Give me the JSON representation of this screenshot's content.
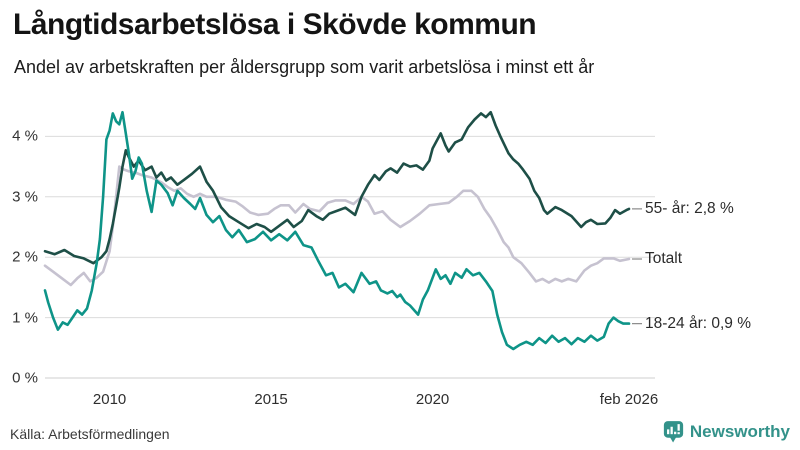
{
  "header": {
    "title": "Långtidsarbetslösa i Skövde kommun",
    "subtitle": "Andel av arbetskraften per åldersgrupp som varit arbetslösa i minst ett år"
  },
  "footer": {
    "source": "Källa: Arbetsförmedlingen",
    "brand": "Newsworthy"
  },
  "colors": {
    "brand_teal": "#33928A",
    "grid": "#dcdcdc",
    "zero_line": "#cfcfcf",
    "dash_connector": "#8a8a8a",
    "series_55": "#1E4F47",
    "series_total": "#C6C2D0",
    "series_18_24": "#0E9488"
  },
  "chart_data": {
    "type": "line",
    "title": "Långtidsarbetslösa i Skövde kommun",
    "subtitle": "Andel av arbetskraften per åldersgrupp som varit arbetslösa i minst ett år",
    "x_unit": "decimal_year",
    "xlim": [
      2008.0,
      2026.17
    ],
    "ylim": [
      0,
      4.6
    ],
    "grid": "horizontal",
    "legend_position": "right-end-labels",
    "yticks": [
      {
        "v": 0,
        "label": "0 %"
      },
      {
        "v": 1,
        "label": "1 %"
      },
      {
        "v": 2,
        "label": "2 %"
      },
      {
        "v": 3,
        "label": "3 %"
      },
      {
        "v": 4,
        "label": "4 %"
      }
    ],
    "xticks": [
      {
        "v": 2010,
        "label": "2010"
      },
      {
        "v": 2015,
        "label": "2015"
      },
      {
        "v": 2020,
        "label": "2020"
      },
      {
        "v": 2026.08,
        "label": "feb 2026"
      }
    ],
    "series": [
      {
        "name": "Totalt",
        "end_label": "Totalt",
        "end_value": 2.0,
        "color": "#C6C2D0",
        "points": [
          [
            2008.0,
            1.86
          ],
          [
            2008.25,
            1.76
          ],
          [
            2008.5,
            1.66
          ],
          [
            2008.8,
            1.54
          ],
          [
            2009.0,
            1.65
          ],
          [
            2009.2,
            1.74
          ],
          [
            2009.4,
            1.6
          ],
          [
            2009.6,
            1.66
          ],
          [
            2009.8,
            1.76
          ],
          [
            2010.0,
            2.1
          ],
          [
            2010.1,
            2.5
          ],
          [
            2010.2,
            3.0
          ],
          [
            2010.3,
            3.5
          ],
          [
            2010.45,
            3.45
          ],
          [
            2010.6,
            3.42
          ],
          [
            2010.8,
            3.4
          ],
          [
            2011.0,
            3.36
          ],
          [
            2011.3,
            3.32
          ],
          [
            2011.6,
            3.24
          ],
          [
            2011.8,
            3.16
          ],
          [
            2012.0,
            3.1
          ],
          [
            2012.2,
            3.14
          ],
          [
            2012.4,
            3.05
          ],
          [
            2012.6,
            3.0
          ],
          [
            2012.8,
            3.05
          ],
          [
            2013.0,
            3.0
          ],
          [
            2013.3,
            3.0
          ],
          [
            2013.6,
            2.95
          ],
          [
            2013.9,
            2.92
          ],
          [
            2014.1,
            2.85
          ],
          [
            2014.35,
            2.74
          ],
          [
            2014.6,
            2.7
          ],
          [
            2014.9,
            2.72
          ],
          [
            2015.1,
            2.8
          ],
          [
            2015.3,
            2.86
          ],
          [
            2015.55,
            2.86
          ],
          [
            2015.75,
            2.74
          ],
          [
            2016.0,
            2.88
          ],
          [
            2016.2,
            2.8
          ],
          [
            2016.5,
            2.76
          ],
          [
            2016.75,
            2.9
          ],
          [
            2017.0,
            2.94
          ],
          [
            2017.3,
            2.94
          ],
          [
            2017.55,
            2.88
          ],
          [
            2017.8,
            3.0
          ],
          [
            2018.0,
            2.92
          ],
          [
            2018.2,
            2.72
          ],
          [
            2018.45,
            2.76
          ],
          [
            2018.7,
            2.62
          ],
          [
            2019.0,
            2.5
          ],
          [
            2019.3,
            2.6
          ],
          [
            2019.6,
            2.72
          ],
          [
            2019.9,
            2.86
          ],
          [
            2020.2,
            2.88
          ],
          [
            2020.5,
            2.9
          ],
          [
            2020.75,
            3.0
          ],
          [
            2020.95,
            3.1
          ],
          [
            2021.2,
            3.1
          ],
          [
            2021.4,
            3.0
          ],
          [
            2021.6,
            2.8
          ],
          [
            2021.8,
            2.65
          ],
          [
            2022.0,
            2.46
          ],
          [
            2022.2,
            2.25
          ],
          [
            2022.35,
            2.16
          ],
          [
            2022.5,
            2.0
          ],
          [
            2022.75,
            1.9
          ],
          [
            2023.0,
            1.74
          ],
          [
            2023.2,
            1.6
          ],
          [
            2023.4,
            1.64
          ],
          [
            2023.6,
            1.58
          ],
          [
            2023.8,
            1.64
          ],
          [
            2024.0,
            1.6
          ],
          [
            2024.2,
            1.64
          ],
          [
            2024.45,
            1.6
          ],
          [
            2024.7,
            1.78
          ],
          [
            2024.9,
            1.86
          ],
          [
            2025.1,
            1.9
          ],
          [
            2025.3,
            1.98
          ],
          [
            2025.6,
            1.98
          ],
          [
            2025.8,
            1.94
          ],
          [
            2026.08,
            1.97
          ]
        ]
      },
      {
        "name": "55- år",
        "end_label": "55- år: 2,8 %",
        "end_value": 2.8,
        "color": "#1E4F47",
        "points": [
          [
            2008.0,
            2.1
          ],
          [
            2008.3,
            2.05
          ],
          [
            2008.6,
            2.12
          ],
          [
            2008.9,
            2.02
          ],
          [
            2009.2,
            1.98
          ],
          [
            2009.5,
            1.9
          ],
          [
            2009.75,
            2.0
          ],
          [
            2009.9,
            2.1
          ],
          [
            2010.0,
            2.3
          ],
          [
            2010.1,
            2.55
          ],
          [
            2010.2,
            2.85
          ],
          [
            2010.3,
            3.15
          ],
          [
            2010.4,
            3.5
          ],
          [
            2010.5,
            3.77
          ],
          [
            2010.6,
            3.65
          ],
          [
            2010.75,
            3.5
          ],
          [
            2010.9,
            3.6
          ],
          [
            2011.1,
            3.44
          ],
          [
            2011.3,
            3.5
          ],
          [
            2011.45,
            3.32
          ],
          [
            2011.6,
            3.4
          ],
          [
            2011.75,
            3.27
          ],
          [
            2011.9,
            3.32
          ],
          [
            2012.1,
            3.2
          ],
          [
            2012.3,
            3.28
          ],
          [
            2012.55,
            3.38
          ],
          [
            2012.8,
            3.5
          ],
          [
            2013.0,
            3.25
          ],
          [
            2013.2,
            3.1
          ],
          [
            2013.45,
            2.83
          ],
          [
            2013.7,
            2.68
          ],
          [
            2014.0,
            2.58
          ],
          [
            2014.3,
            2.48
          ],
          [
            2014.55,
            2.55
          ],
          [
            2014.8,
            2.5
          ],
          [
            2015.0,
            2.42
          ],
          [
            2015.25,
            2.52
          ],
          [
            2015.5,
            2.62
          ],
          [
            2015.7,
            2.5
          ],
          [
            2015.95,
            2.6
          ],
          [
            2016.15,
            2.78
          ],
          [
            2016.4,
            2.68
          ],
          [
            2016.6,
            2.62
          ],
          [
            2016.8,
            2.72
          ],
          [
            2017.1,
            2.78
          ],
          [
            2017.3,
            2.82
          ],
          [
            2017.6,
            2.7
          ],
          [
            2017.8,
            3.0
          ],
          [
            2018.0,
            3.2
          ],
          [
            2018.2,
            3.36
          ],
          [
            2018.35,
            3.28
          ],
          [
            2018.55,
            3.42
          ],
          [
            2018.7,
            3.47
          ],
          [
            2018.9,
            3.4
          ],
          [
            2019.1,
            3.55
          ],
          [
            2019.3,
            3.5
          ],
          [
            2019.5,
            3.52
          ],
          [
            2019.7,
            3.45
          ],
          [
            2019.9,
            3.6
          ],
          [
            2020.0,
            3.8
          ],
          [
            2020.25,
            4.05
          ],
          [
            2020.4,
            3.85
          ],
          [
            2020.5,
            3.75
          ],
          [
            2020.7,
            3.9
          ],
          [
            2020.9,
            3.95
          ],
          [
            2021.1,
            4.15
          ],
          [
            2021.3,
            4.28
          ],
          [
            2021.5,
            4.38
          ],
          [
            2021.65,
            4.32
          ],
          [
            2021.8,
            4.4
          ],
          [
            2021.95,
            4.18
          ],
          [
            2022.1,
            4.0
          ],
          [
            2022.35,
            3.72
          ],
          [
            2022.5,
            3.62
          ],
          [
            2022.65,
            3.55
          ],
          [
            2022.8,
            3.45
          ],
          [
            2023.0,
            3.3
          ],
          [
            2023.15,
            3.1
          ],
          [
            2023.3,
            2.98
          ],
          [
            2023.45,
            2.78
          ],
          [
            2023.55,
            2.72
          ],
          [
            2023.8,
            2.83
          ],
          [
            2024.0,
            2.78
          ],
          [
            2024.3,
            2.68
          ],
          [
            2024.6,
            2.5
          ],
          [
            2024.75,
            2.58
          ],
          [
            2024.9,
            2.62
          ],
          [
            2025.1,
            2.55
          ],
          [
            2025.35,
            2.56
          ],
          [
            2025.5,
            2.65
          ],
          [
            2025.65,
            2.78
          ],
          [
            2025.8,
            2.72
          ],
          [
            2026.0,
            2.78
          ],
          [
            2026.08,
            2.8
          ]
        ]
      },
      {
        "name": "18-24 år",
        "end_label": "18-24 år: 0,9 %",
        "end_value": 0.9,
        "color": "#0E9488",
        "points": [
          [
            2008.0,
            1.45
          ],
          [
            2008.1,
            1.25
          ],
          [
            2008.25,
            1.0
          ],
          [
            2008.4,
            0.8
          ],
          [
            2008.55,
            0.92
          ],
          [
            2008.7,
            0.88
          ],
          [
            2008.85,
            1.0
          ],
          [
            2009.0,
            1.12
          ],
          [
            2009.15,
            1.05
          ],
          [
            2009.3,
            1.15
          ],
          [
            2009.45,
            1.45
          ],
          [
            2009.6,
            1.9
          ],
          [
            2009.7,
            2.3
          ],
          [
            2009.8,
            3.0
          ],
          [
            2009.9,
            3.95
          ],
          [
            2010.0,
            4.1
          ],
          [
            2010.1,
            4.38
          ],
          [
            2010.2,
            4.25
          ],
          [
            2010.3,
            4.2
          ],
          [
            2010.4,
            4.4
          ],
          [
            2010.5,
            4.05
          ],
          [
            2010.6,
            3.7
          ],
          [
            2010.7,
            3.3
          ],
          [
            2010.8,
            3.42
          ],
          [
            2010.9,
            3.65
          ],
          [
            2011.0,
            3.55
          ],
          [
            2011.15,
            3.1
          ],
          [
            2011.3,
            2.75
          ],
          [
            2011.45,
            3.27
          ],
          [
            2011.6,
            3.2
          ],
          [
            2011.8,
            3.06
          ],
          [
            2011.95,
            2.86
          ],
          [
            2012.1,
            3.1
          ],
          [
            2012.3,
            2.98
          ],
          [
            2012.5,
            2.88
          ],
          [
            2012.65,
            2.8
          ],
          [
            2012.8,
            2.98
          ],
          [
            2013.0,
            2.7
          ],
          [
            2013.2,
            2.58
          ],
          [
            2013.4,
            2.68
          ],
          [
            2013.6,
            2.45
          ],
          [
            2013.8,
            2.33
          ],
          [
            2014.0,
            2.45
          ],
          [
            2014.25,
            2.25
          ],
          [
            2014.5,
            2.3
          ],
          [
            2014.75,
            2.42
          ],
          [
            2015.0,
            2.28
          ],
          [
            2015.25,
            2.38
          ],
          [
            2015.5,
            2.28
          ],
          [
            2015.75,
            2.42
          ],
          [
            2016.0,
            2.2
          ],
          [
            2016.25,
            2.16
          ],
          [
            2016.45,
            1.95
          ],
          [
            2016.7,
            1.7
          ],
          [
            2016.9,
            1.74
          ],
          [
            2017.1,
            1.5
          ],
          [
            2017.3,
            1.56
          ],
          [
            2017.55,
            1.42
          ],
          [
            2017.8,
            1.74
          ],
          [
            2018.05,
            1.56
          ],
          [
            2018.25,
            1.6
          ],
          [
            2018.4,
            1.45
          ],
          [
            2018.6,
            1.4
          ],
          [
            2018.75,
            1.44
          ],
          [
            2018.9,
            1.34
          ],
          [
            2019.0,
            1.38
          ],
          [
            2019.15,
            1.26
          ],
          [
            2019.3,
            1.2
          ],
          [
            2019.55,
            1.05
          ],
          [
            2019.7,
            1.3
          ],
          [
            2019.85,
            1.45
          ],
          [
            2020.1,
            1.8
          ],
          [
            2020.25,
            1.64
          ],
          [
            2020.4,
            1.7
          ],
          [
            2020.55,
            1.56
          ],
          [
            2020.7,
            1.74
          ],
          [
            2020.9,
            1.66
          ],
          [
            2021.05,
            1.8
          ],
          [
            2021.25,
            1.7
          ],
          [
            2021.45,
            1.74
          ],
          [
            2021.65,
            1.6
          ],
          [
            2021.85,
            1.44
          ],
          [
            2022.0,
            1.05
          ],
          [
            2022.15,
            0.76
          ],
          [
            2022.3,
            0.55
          ],
          [
            2022.5,
            0.48
          ],
          [
            2022.7,
            0.55
          ],
          [
            2022.9,
            0.6
          ],
          [
            2023.1,
            0.55
          ],
          [
            2023.3,
            0.66
          ],
          [
            2023.5,
            0.58
          ],
          [
            2023.7,
            0.7
          ],
          [
            2023.9,
            0.6
          ],
          [
            2024.1,
            0.66
          ],
          [
            2024.3,
            0.56
          ],
          [
            2024.5,
            0.66
          ],
          [
            2024.7,
            0.6
          ],
          [
            2024.9,
            0.7
          ],
          [
            2025.1,
            0.62
          ],
          [
            2025.3,
            0.68
          ],
          [
            2025.45,
            0.9
          ],
          [
            2025.6,
            1.0
          ],
          [
            2025.75,
            0.94
          ],
          [
            2025.9,
            0.9
          ],
          [
            2026.08,
            0.9
          ]
        ]
      }
    ]
  }
}
